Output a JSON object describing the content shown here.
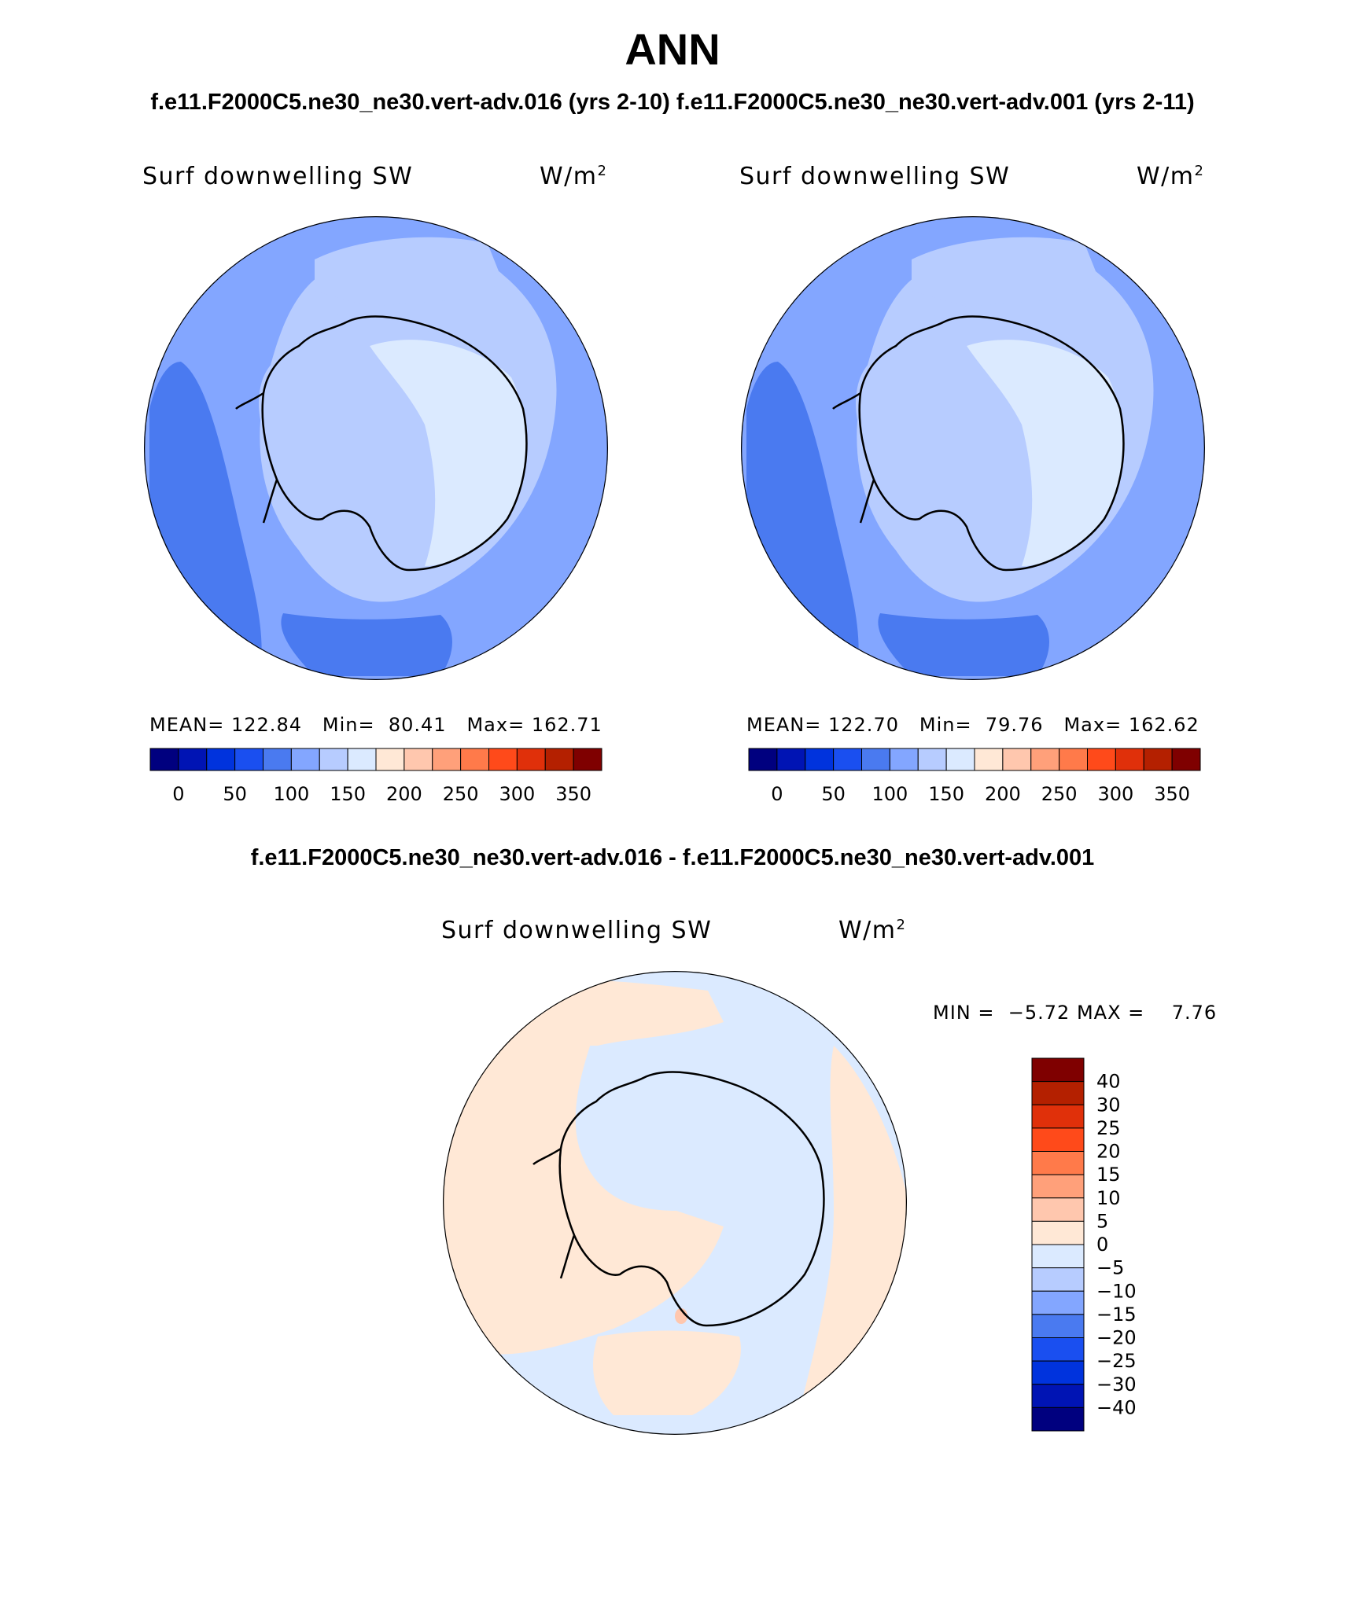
{
  "title": "ANN",
  "case1_label": "f.e11.F2000C5.ne30_ne30.vert-adv.016 (yrs 2-10)",
  "case2_label": "f.e11.F2000C5.ne30_ne30.vert-adv.001 (yrs 2-11)",
  "diff_label": "f.e11.F2000C5.ne30_ne30.vert-adv.016 - f.e11.F2000C5.ne30_ne30.vert-adv.001",
  "panels": [
    {
      "variable": "Surf downwelling SW",
      "unit": "W/m",
      "unit_exp": "2",
      "mean_text": "MEAN=",
      "mean_value": "122.84",
      "min_text": "Min=",
      "min_value": "80.41",
      "max_text": "Max=",
      "max_value": "162.71"
    },
    {
      "variable": "Surf downwelling SW",
      "unit": "W/m",
      "unit_exp": "2",
      "mean_text": "MEAN=",
      "mean_value": "122.70",
      "min_text": "Min=",
      "min_value": "79.76",
      "max_text": "Max=",
      "max_value": "162.62"
    }
  ],
  "diff_panel": {
    "variable": "Surf downwelling SW",
    "unit": "W/m",
    "unit_exp": "2",
    "min_text": "MIN =",
    "min_value": "−5.72",
    "max_text": "MAX =",
    "max_value": "7.76"
  },
  "colorbar_abs": {
    "colors": [
      "#00007f",
      "#0014b4",
      "#0033dd",
      "#1a4ff0",
      "#4a7af0",
      "#83a6ff",
      "#b7ccff",
      "#dbeaff",
      "#ffe8d6",
      "#ffc7ae",
      "#ffa07a",
      "#ff7a4a",
      "#ff4a1a",
      "#e0300a",
      "#b42000",
      "#7f0000"
    ],
    "labels": [
      "0",
      "50",
      "100",
      "150",
      "200",
      "250",
      "300",
      "350"
    ]
  },
  "colorbar_diff": {
    "colors": [
      "#00007f",
      "#0014b4",
      "#0033dd",
      "#1a4ff0",
      "#4a7af0",
      "#83a6ff",
      "#b7ccff",
      "#dbeaff",
      "#ffe8d6",
      "#ffc7ae",
      "#ffa07a",
      "#ff7a4a",
      "#ff4a1a",
      "#e0300a",
      "#b42000",
      "#7f0000"
    ],
    "labels": [
      "40",
      "30",
      "25",
      "20",
      "15",
      "10",
      "5",
      "0",
      "−5",
      "−10",
      "−15",
      "−20",
      "−25",
      "−30",
      "−40"
    ]
  },
  "map_colors": {
    "ocean_outer": "#83a6ff",
    "ocean_dark": "#4a7af0",
    "ocean_mid": "#b7ccff",
    "continent_east": "#dbeaff",
    "continent_west": "#b7ccff",
    "diff_pos": "#ffe8d6",
    "diff_neg": "#dbeaff",
    "diff_spot": "#ffc7ae",
    "coast": "#000000"
  }
}
